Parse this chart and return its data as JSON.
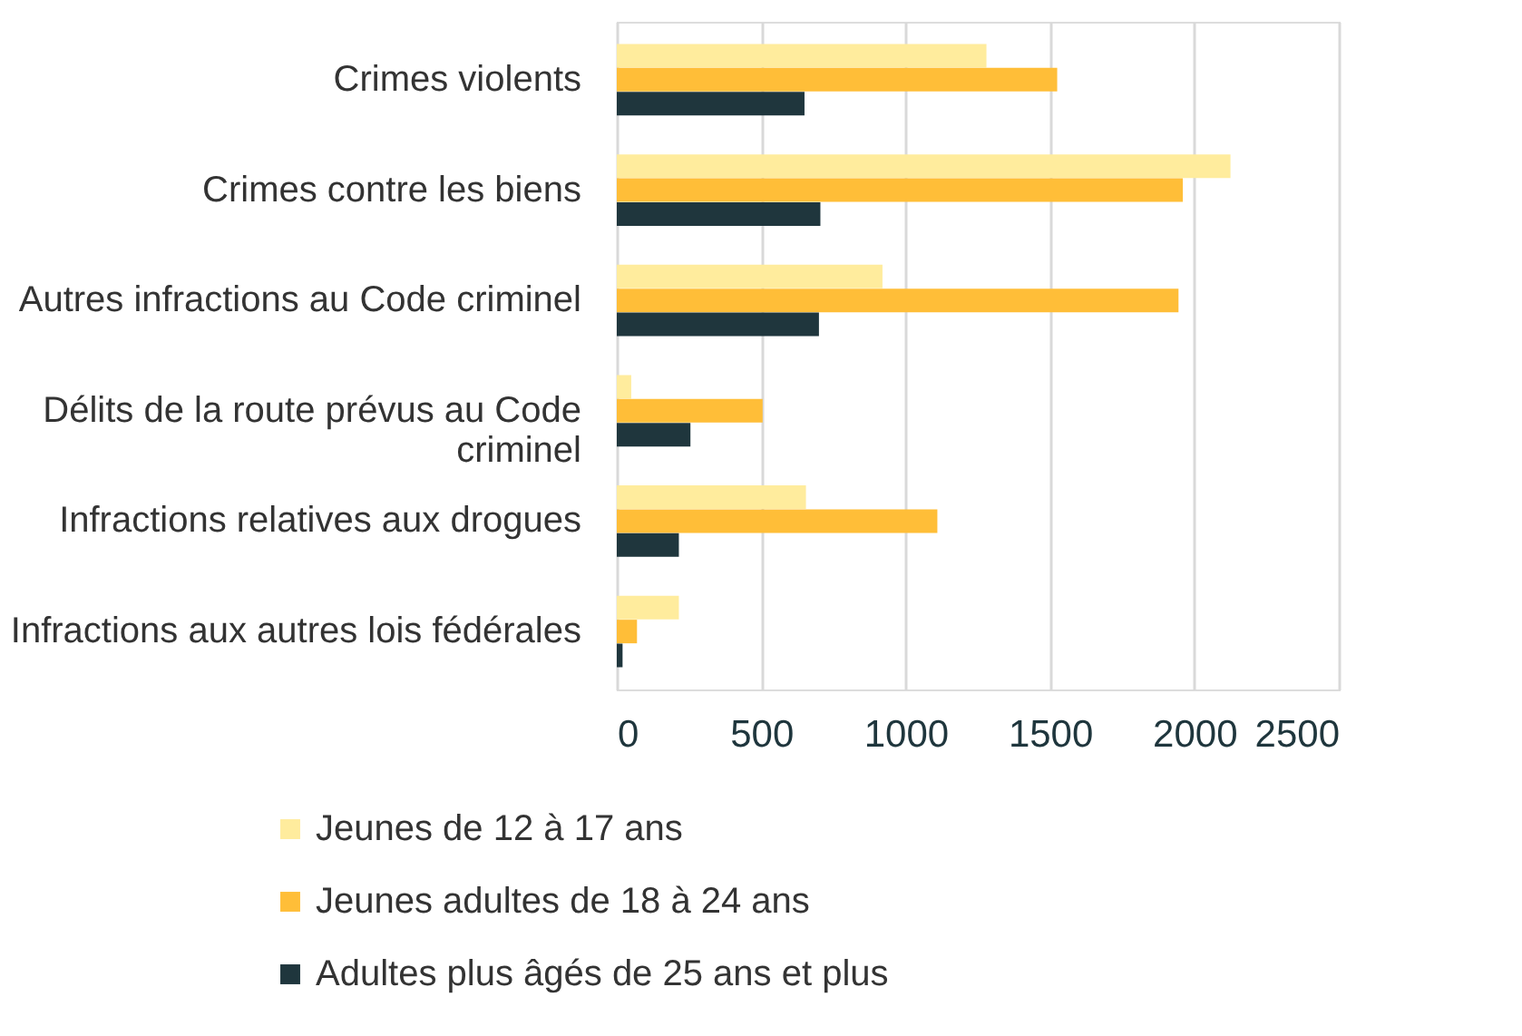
{
  "chart_data": {
    "type": "bar",
    "orientation": "horizontal",
    "categories": [
      "Crimes violents",
      "Crimes contre les biens",
      "Autres infractions au Code criminel",
      "Délits de la route prévus au Code\ncriminel",
      "Infractions relatives aux drogues",
      "Infractions aux autres lois fédérales"
    ],
    "series": [
      {
        "name": "Jeunes de 12 à 17 ans",
        "color": "#ffec9d",
        "values": [
          1280,
          2125,
          920,
          50,
          655,
          215
        ]
      },
      {
        "name": "Jeunes adultes de 18 à 24 ans",
        "color": "#ffbe38",
        "values": [
          1525,
          1960,
          1945,
          505,
          1110,
          70
        ]
      },
      {
        "name": "Adultes plus âgés de 25 ans et plus",
        "color": "#1f363d",
        "values": [
          650,
          705,
          700,
          255,
          215,
          20
        ]
      }
    ],
    "xlim": [
      0,
      2500
    ],
    "xticks": [
      0,
      500,
      1000,
      1500,
      2000,
      2500
    ],
    "grid": "x",
    "legend": "bottom"
  }
}
